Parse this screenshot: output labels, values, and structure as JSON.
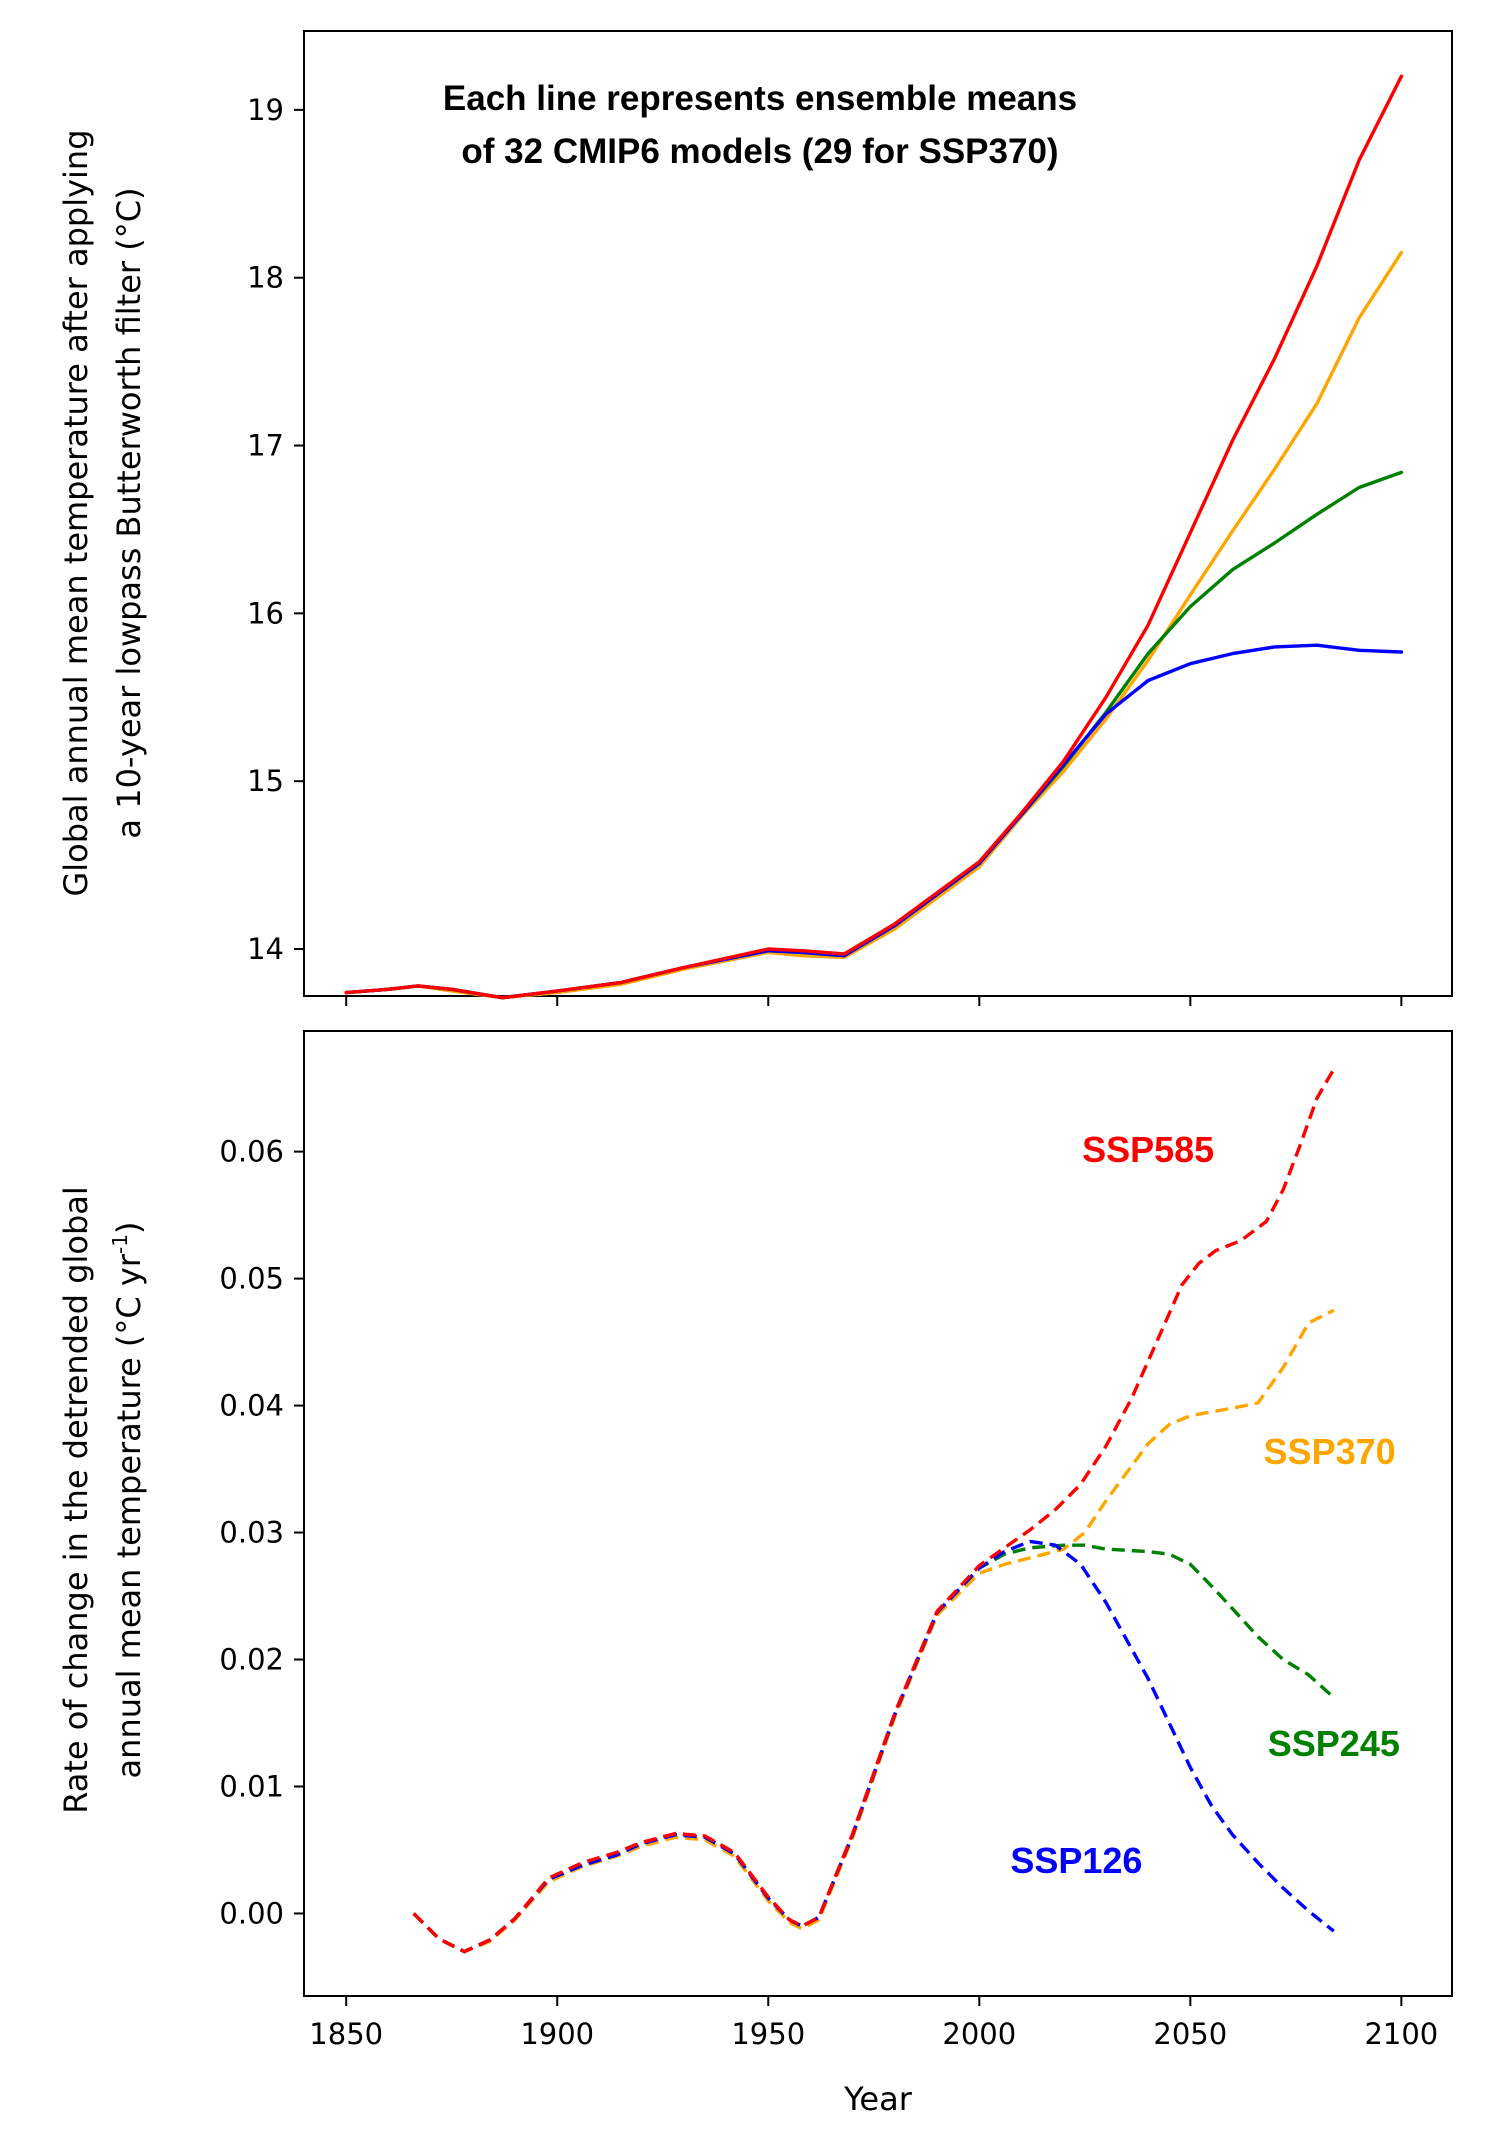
{
  "chart_data": [
    {
      "type": "line",
      "title": "",
      "xlabel": "",
      "ylabel": [
        "Global annual mean temperature after applying",
        "a 10-year lowpass Butterworth filter (°C)"
      ],
      "annotation": [
        "Each line represents ensemble means",
        "of 32 CMIP6 models (29 for SSP370)"
      ],
      "xlim": [
        1840,
        2112
      ],
      "ylim": [
        13.72,
        19.47
      ],
      "xticks": [
        1850,
        1900,
        1950,
        2000,
        2050,
        2100
      ],
      "yticks": [
        14,
        15,
        16,
        17,
        18,
        19
      ],
      "ytick_labels": [
        "14",
        "15",
        "16",
        "17",
        "18",
        "19"
      ],
      "grid": false,
      "legend": "none",
      "series": [
        {
          "color": "#ffa500",
          "x": [
            1850,
            1860,
            1867,
            1875,
            1887,
            1900,
            1915,
            1930,
            1950,
            1958,
            1968,
            1980,
            2000,
            2010,
            2020,
            2030,
            2040,
            2050,
            2060,
            2070,
            2080,
            2090,
            2100
          ],
          "y": [
            13.74,
            13.76,
            13.78,
            13.75,
            13.71,
            13.74,
            13.79,
            13.88,
            13.98,
            13.96,
            13.95,
            14.12,
            14.49,
            14.79,
            15.06,
            15.37,
            15.72,
            16.11,
            16.49,
            16.86,
            17.25,
            17.76,
            18.15
          ]
        },
        {
          "color": "#008000",
          "x": [
            1850,
            1860,
            1867,
            1875,
            1887,
            1900,
            1915,
            1930,
            1950,
            1958,
            1968,
            1980,
            2000,
            2010,
            2020,
            2030,
            2040,
            2050,
            2060,
            2070,
            2080,
            2090,
            2100
          ],
          "y": [
            13.74,
            13.76,
            13.78,
            13.76,
            13.71,
            13.75,
            13.8,
            13.89,
            13.99,
            13.98,
            13.96,
            14.14,
            14.51,
            14.8,
            15.09,
            15.41,
            15.76,
            16.04,
            16.26,
            16.42,
            16.59,
            16.75,
            16.84
          ]
        },
        {
          "color": "#0000ff",
          "x": [
            1850,
            1860,
            1867,
            1875,
            1887,
            1900,
            1915,
            1930,
            1950,
            1958,
            1968,
            1980,
            2000,
            2010,
            2020,
            2025,
            2030,
            2035,
            2040,
            2050,
            2060,
            2070,
            2080,
            2090,
            2100
          ],
          "y": [
            13.74,
            13.76,
            13.78,
            13.76,
            13.71,
            13.75,
            13.8,
            13.89,
            13.99,
            13.98,
            13.96,
            14.14,
            14.51,
            14.8,
            15.1,
            15.25,
            15.4,
            15.5,
            15.6,
            15.7,
            15.76,
            15.8,
            15.81,
            15.78,
            15.77
          ]
        },
        {
          "color": "#ff0000",
          "x": [
            1850,
            1860,
            1867,
            1875,
            1887,
            1900,
            1915,
            1930,
            1950,
            1958,
            1968,
            1980,
            2000,
            2010,
            2020,
            2030,
            2040,
            2050,
            2060,
            2070,
            2080,
            2090,
            2100
          ],
          "y": [
            13.74,
            13.76,
            13.78,
            13.76,
            13.71,
            13.75,
            13.8,
            13.89,
            14.0,
            13.99,
            13.97,
            14.15,
            14.52,
            14.81,
            15.12,
            15.5,
            15.93,
            16.48,
            17.03,
            17.52,
            18.07,
            18.7,
            19.2
          ]
        }
      ]
    },
    {
      "type": "line",
      "title": "",
      "xlabel": "Year",
      "ylabel": [
        "Rate of change in the detrended global",
        "annual mean temperature (°C yr",
        "-1",
        ")"
      ],
      "xlim": [
        1840,
        2112
      ],
      "ylim": [
        -0.0065,
        0.0695
      ],
      "xticks": [
        1850,
        1900,
        1950,
        2000,
        2050,
        2100
      ],
      "xtick_labels": [
        "1850",
        "1900",
        "1950",
        "2000",
        "2050",
        "2100"
      ],
      "yticks": [
        0.0,
        0.01,
        0.02,
        0.03,
        0.04,
        0.05,
        0.06
      ],
      "ytick_labels": [
        "0.00",
        "0.01",
        "0.02",
        "0.03",
        "0.04",
        "0.05",
        "0.06"
      ],
      "grid": false,
      "legend": "none",
      "series": [
        {
          "name": "SSP370",
          "color": "#ffa500",
          "x": [
            1866,
            1872,
            1878,
            1884,
            1890,
            1898,
            1906,
            1914,
            1920,
            1928,
            1935,
            1942,
            1950,
            1955,
            1958,
            1962,
            1970,
            1980,
            1990,
            2000,
            2006,
            2012,
            2020,
            2025,
            2030,
            2040,
            2045,
            2050,
            2055,
            2060,
            2066,
            2072,
            2078,
            2084
          ],
          "y": [
            0.0,
            -0.002,
            -0.003,
            -0.0022,
            -0.0005,
            0.0025,
            0.0037,
            0.0045,
            0.0053,
            0.006,
            0.0058,
            0.0045,
            0.001,
            -0.0007,
            -0.0012,
            -0.0005,
            0.006,
            0.0155,
            0.0235,
            0.0268,
            0.0275,
            0.028,
            0.0287,
            0.03,
            0.0325,
            0.037,
            0.0385,
            0.0392,
            0.0395,
            0.0398,
            0.0402,
            0.043,
            0.0465,
            0.0475
          ]
        },
        {
          "name": "SSP245",
          "color": "#008000",
          "x": [
            1866,
            1872,
            1878,
            1884,
            1890,
            1898,
            1906,
            1914,
            1920,
            1928,
            1935,
            1942,
            1950,
            1955,
            1958,
            1962,
            1970,
            1980,
            1990,
            2000,
            2006,
            2012,
            2020,
            2025,
            2030,
            2040,
            2045,
            2050,
            2055,
            2060,
            2066,
            2072,
            2078,
            2084
          ],
          "y": [
            0.0,
            -0.002,
            -0.003,
            -0.0021,
            -0.0004,
            0.0027,
            0.0038,
            0.0046,
            0.0055,
            0.0062,
            0.006,
            0.0047,
            0.0012,
            -0.0005,
            -0.001,
            -0.0003,
            0.0062,
            0.0157,
            0.0237,
            0.0272,
            0.0283,
            0.0288,
            0.029,
            0.029,
            0.0287,
            0.0285,
            0.0283,
            0.0275,
            0.0258,
            0.024,
            0.0218,
            0.02,
            0.0188,
            0.017
          ]
        },
        {
          "name": "SSP126",
          "color": "#0000ff",
          "x": [
            1866,
            1872,
            1878,
            1884,
            1890,
            1898,
            1906,
            1914,
            1920,
            1928,
            1935,
            1942,
            1950,
            1955,
            1958,
            1962,
            1970,
            1980,
            1990,
            2000,
            2006,
            2012,
            2018,
            2024,
            2030,
            2040,
            2045,
            2050,
            2055,
            2060,
            2066,
            2072,
            2078,
            2084
          ],
          "y": [
            0.0,
            -0.002,
            -0.003,
            -0.0021,
            -0.0004,
            0.0027,
            0.0038,
            0.0046,
            0.0055,
            0.0062,
            0.006,
            0.0047,
            0.0012,
            -0.0005,
            -0.001,
            -0.0003,
            0.0062,
            0.0157,
            0.0237,
            0.0272,
            0.0285,
            0.0293,
            0.029,
            0.0275,
            0.0245,
            0.0185,
            0.015,
            0.0115,
            0.0085,
            0.0062,
            0.004,
            0.002,
            0.0002,
            -0.0014
          ]
        },
        {
          "name": "SSP585",
          "color": "#ff0000",
          "x": [
            1866,
            1872,
            1878,
            1884,
            1890,
            1898,
            1906,
            1914,
            1920,
            1928,
            1935,
            1942,
            1950,
            1955,
            1958,
            1962,
            1970,
            1980,
            1990,
            2000,
            2006,
            2012,
            2018,
            2024,
            2030,
            2036,
            2042,
            2048,
            2052,
            2056,
            2062,
            2068,
            2072,
            2076,
            2080,
            2084
          ],
          "y": [
            0.0,
            -0.002,
            -0.003,
            -0.0021,
            -0.0004,
            0.0028,
            0.004,
            0.0048,
            0.0056,
            0.0063,
            0.0061,
            0.0048,
            0.0013,
            -0.0005,
            -0.001,
            -0.0003,
            0.0063,
            0.0158,
            0.0238,
            0.0274,
            0.0288,
            0.0302,
            0.0318,
            0.0338,
            0.0368,
            0.0405,
            0.045,
            0.0495,
            0.0512,
            0.0522,
            0.053,
            0.0545,
            0.057,
            0.0605,
            0.0642,
            0.0665
          ]
        }
      ],
      "series_labels": [
        {
          "text": "SSP585",
          "color": "#ff0000",
          "x": 2040,
          "y": 0.0592
        },
        {
          "text": "SSP370",
          "color": "#ffa500",
          "x": 2083,
          "y": 0.0354
        },
        {
          "text": "SSP245",
          "color": "#008000",
          "x": 2084,
          "y": 0.0124
        },
        {
          "text": "SSP126",
          "color": "#0000ff",
          "x": 2023,
          "y": 0.0032
        }
      ]
    }
  ]
}
